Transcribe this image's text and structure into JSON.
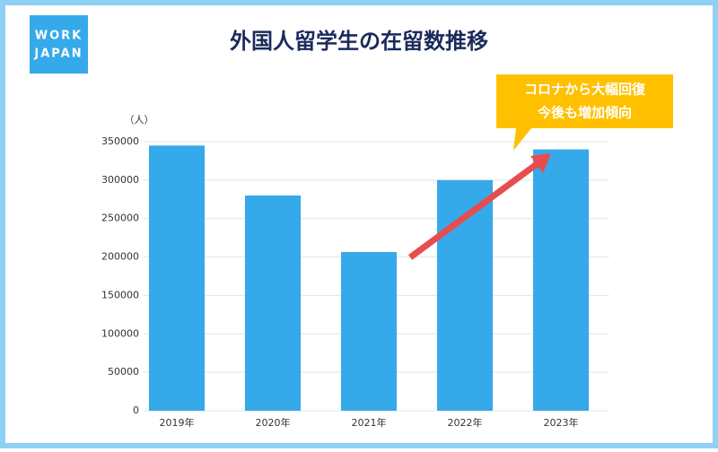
{
  "chart_data": {
    "type": "bar",
    "title": "外国人留学生の在留数推移",
    "logo": [
      "WORK",
      "JAPAN"
    ],
    "y_label": "（人）",
    "categories": [
      "2019年",
      "2020年",
      "2021年",
      "2022年",
      "2023年"
    ],
    "values": [
      345000,
      280000,
      206500,
      300000,
      340000
    ],
    "color": "#36a9ea",
    "ylim": [
      0,
      350000
    ],
    "yticks": [
      0,
      50000,
      100000,
      150000,
      200000,
      250000,
      300000,
      350000
    ],
    "grid": true,
    "annotation": [
      "コロナから大幅回復",
      "今後も増加傾向"
    ]
  }
}
